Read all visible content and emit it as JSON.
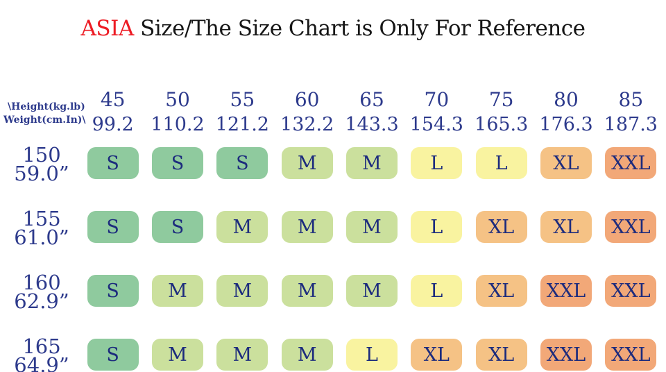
{
  "title": {
    "highlight": "ASIA",
    "rest": " Size/The Size Chart is Only For Reference"
  },
  "chart_data": {
    "type": "table",
    "title": "ASIA Size/The Size Chart is Only For Reference",
    "corner": {
      "line1": "\\Height(kg.lb)",
      "line2": "Weight(cm.In)\\"
    },
    "columns_weight": [
      {
        "kg": "45",
        "lb": "99.2"
      },
      {
        "kg": "50",
        "lb": "110.2"
      },
      {
        "kg": "55",
        "lb": "121.2"
      },
      {
        "kg": "60",
        "lb": "132.2"
      },
      {
        "kg": "65",
        "lb": "143.3"
      },
      {
        "kg": "70",
        "lb": "154.3"
      },
      {
        "kg": "75",
        "lb": "165.3"
      },
      {
        "kg": "80",
        "lb": "176.3"
      },
      {
        "kg": "85",
        "lb": "187.3"
      }
    ],
    "rows_height": [
      {
        "cm": "150",
        "inch": "59.0”",
        "sizes": [
          "S",
          "S",
          "S",
          "M",
          "M",
          "L",
          "L",
          "XL",
          "XXL"
        ]
      },
      {
        "cm": "155",
        "inch": "61.0”",
        "sizes": [
          "S",
          "S",
          "M",
          "M",
          "M",
          "L",
          "XL",
          "XL",
          "XXL"
        ]
      },
      {
        "cm": "160",
        "inch": "62.9”",
        "sizes": [
          "S",
          "M",
          "M",
          "M",
          "M",
          "L",
          "XL",
          "XXL",
          "XXL"
        ]
      },
      {
        "cm": "165",
        "inch": "64.9”",
        "sizes": [
          "S",
          "M",
          "M",
          "M",
          "L",
          "XL",
          "XL",
          "XXL",
          "XXL"
        ]
      }
    ]
  },
  "colors": {
    "s": "#8fca9e",
    "m": "#cbe09d",
    "l": "#f9f3a0",
    "xl": "#f5c285",
    "xxl": "#f2a878",
    "navy": "#1c2b7d",
    "header_navy": "#2d3a8c",
    "red": "#ed1c24",
    "black": "#161616"
  }
}
